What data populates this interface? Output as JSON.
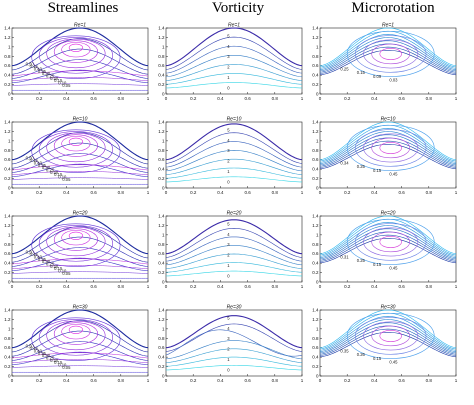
{
  "columns": [
    {
      "id": "streamlines",
      "title": "Streamlines"
    },
    {
      "id": "vorticity",
      "title": "Vorticity"
    },
    {
      "id": "microrotation",
      "title": "Microrotation"
    }
  ],
  "rows": [
    {
      "re_label": "Re=1"
    },
    {
      "re_label": "Re=10"
    },
    {
      "re_label": "Re=20"
    },
    {
      "re_label": "Re=30"
    }
  ],
  "axes": {
    "y_ticks": [
      "1.4",
      "1.2",
      "1",
      "0.8",
      "0.6",
      "0.4",
      "0.2",
      "0"
    ],
    "x_ticks": [
      "0",
      "0.2",
      "0.4",
      "0.6",
      "0.8",
      "1"
    ]
  },
  "contour_labels": {
    "streamlines": [
      [
        "0.50",
        "0.45",
        "0.40",
        "0.35",
        "0.30",
        "0.25",
        "0.20",
        "0.15",
        "0.10",
        "0.05"
      ],
      [
        "0.50",
        "0.45",
        "0.40",
        "0.35",
        "0.30",
        "0.25",
        "0.20",
        "0.15",
        "0.10",
        "0.05"
      ],
      [
        "0.50",
        "0.45",
        "0.40",
        "0.35",
        "0.30",
        "0.25",
        "0.20",
        "0.15",
        "0.10",
        "0.05"
      ],
      [
        "0.50",
        "0.45",
        "0.40",
        "0.35",
        "0.30",
        "0.25",
        "0.20",
        "0.15",
        "0.10",
        "0.05"
      ]
    ],
    "vorticity": [
      [
        "5",
        "4",
        "3",
        "2",
        "1",
        "0"
      ],
      [
        "5",
        "4",
        "3",
        "2",
        "1",
        "0"
      ],
      [
        "5",
        "4",
        "3",
        "2",
        "1",
        "0"
      ],
      [
        "5",
        "4",
        "3",
        "2",
        "1",
        "0"
      ]
    ],
    "microrotation": [
      [
        "0.25",
        "0.15",
        "0.09",
        "0.03"
      ],
      [
        "0.34",
        "0.25",
        "0.15",
        "0.45"
      ],
      [
        "0.31",
        "0.25",
        "0.15",
        "0.45"
      ],
      [
        "0.35",
        "0.26",
        "0.15",
        "0.45"
      ]
    ]
  },
  "colors": {
    "boundary": "#1c2a9e",
    "stream_inner": "#e020e0",
    "stream_outer": "#4a3ad8",
    "vort_low": "#36d6e6",
    "vort_high": "#3a2aa8",
    "micro_outer": "#2ab8f0",
    "micro_inner": "#d43ad8"
  }
}
